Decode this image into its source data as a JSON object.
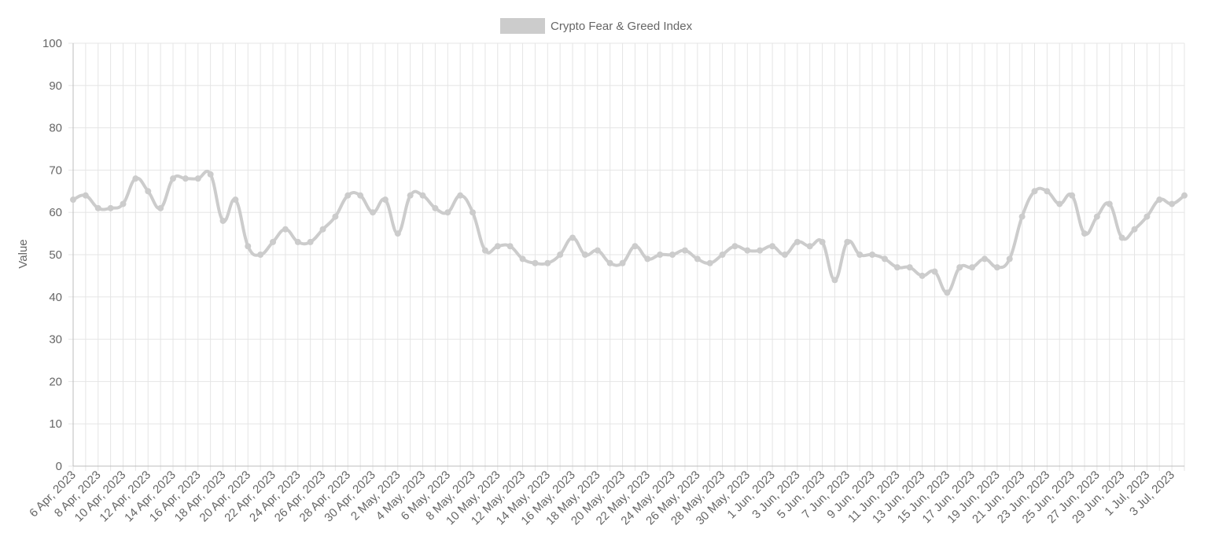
{
  "chart_data": {
    "type": "line",
    "legend": {
      "position": "top",
      "swatch_color": "#cccccc"
    },
    "ylabel": "Value",
    "ylim": [
      0,
      100
    ],
    "y_ticks": [
      0,
      10,
      20,
      30,
      40,
      50,
      60,
      70,
      80,
      90,
      100
    ],
    "grid": true,
    "line_color": "#cccccc",
    "x": [
      "6 Apr, 2023",
      "7 Apr, 2023",
      "8 Apr, 2023",
      "9 Apr, 2023",
      "10 Apr, 2023",
      "11 Apr, 2023",
      "12 Apr, 2023",
      "13 Apr, 2023",
      "14 Apr, 2023",
      "15 Apr, 2023",
      "16 Apr, 2023",
      "17 Apr, 2023",
      "18 Apr, 2023",
      "19 Apr, 2023",
      "20 Apr, 2023",
      "21 Apr, 2023",
      "22 Apr, 2023",
      "23 Apr, 2023",
      "24 Apr, 2023",
      "25 Apr, 2023",
      "26 Apr, 2023",
      "27 Apr, 2023",
      "28 Apr, 2023",
      "29 Apr, 2023",
      "30 Apr, 2023",
      "1 May, 2023",
      "2 May, 2023",
      "3 May, 2023",
      "4 May, 2023",
      "5 May, 2023",
      "6 May, 2023",
      "7 May, 2023",
      "8 May, 2023",
      "9 May, 2023",
      "10 May, 2023",
      "11 May, 2023",
      "12 May, 2023",
      "13 May, 2023",
      "14 May, 2023",
      "15 May, 2023",
      "16 May, 2023",
      "17 May, 2023",
      "18 May, 2023",
      "19 May, 2023",
      "20 May, 2023",
      "21 May, 2023",
      "22 May, 2023",
      "23 May, 2023",
      "24 May, 2023",
      "25 May, 2023",
      "26 May, 2023",
      "27 May, 2023",
      "28 May, 2023",
      "29 May, 2023",
      "30 May, 2023",
      "31 May, 2023",
      "1 Jun, 2023",
      "2 Jun, 2023",
      "3 Jun, 2023",
      "4 Jun, 2023",
      "5 Jun, 2023",
      "6 Jun, 2023",
      "7 Jun, 2023",
      "8 Jun, 2023",
      "9 Jun, 2023",
      "10 Jun, 2023",
      "11 Jun, 2023",
      "12 Jun, 2023",
      "13 Jun, 2023",
      "14 Jun, 2023",
      "15 Jun, 2023",
      "16 Jun, 2023",
      "17 Jun, 2023",
      "18 Jun, 2023",
      "19 Jun, 2023",
      "20 Jun, 2023",
      "21 Jun, 2023",
      "22 Jun, 2023",
      "23 Jun, 2023",
      "24 Jun, 2023",
      "25 Jun, 2023",
      "26 Jun, 2023",
      "27 Jun, 2023",
      "28 Jun, 2023",
      "29 Jun, 2023",
      "30 Jun, 2023",
      "1 Jul, 2023",
      "2 Jul, 2023",
      "3 Jul, 2023",
      "4 Jul, 2023"
    ],
    "x_tick_labels": [
      "6 Apr, 2023",
      "8 Apr, 2023",
      "10 Apr, 2023",
      "12 Apr, 2023",
      "14 Apr, 2023",
      "16 Apr, 2023",
      "18 Apr, 2023",
      "20 Apr, 2023",
      "22 Apr, 2023",
      "24 Apr, 2023",
      "26 Apr, 2023",
      "28 Apr, 2023",
      "30 Apr, 2023",
      "2 May, 2023",
      "4 May, 2023",
      "6 May, 2023",
      "8 May, 2023",
      "10 May, 2023",
      "12 May, 2023",
      "14 May, 2023",
      "16 May, 2023",
      "18 May, 2023",
      "20 May, 2023",
      "22 May, 2023",
      "24 May, 2023",
      "26 May, 2023",
      "28 May, 2023",
      "30 May, 2023",
      "1 Jun, 2023",
      "3 Jun, 2023",
      "5 Jun, 2023",
      "7 Jun, 2023",
      "9 Jun, 2023",
      "11 Jun, 2023",
      "13 Jun, 2023",
      "15 Jun, 2023",
      "17 Jun, 2023",
      "19 Jun, 2023",
      "21 Jun, 2023",
      "23 Jun, 2023",
      "25 Jun, 2023",
      "27 Jun, 2023",
      "29 Jun, 2023",
      "1 Jul, 2023",
      "3 Jul, 2023"
    ],
    "series": [
      {
        "name": "Crypto Fear & Greed Index",
        "values": [
          63,
          64,
          61,
          61,
          62,
          68,
          65,
          61,
          68,
          68,
          68,
          69,
          58,
          63,
          52,
          50,
          53,
          56,
          53,
          53,
          56,
          59,
          64,
          64,
          60,
          63,
          55,
          64,
          64,
          61,
          60,
          64,
          60,
          51,
          52,
          52,
          49,
          48,
          48,
          50,
          54,
          50,
          51,
          48,
          48,
          52,
          49,
          50,
          50,
          51,
          49,
          48,
          50,
          52,
          51,
          51,
          52,
          50,
          53,
          52,
          53,
          44,
          53,
          50,
          50,
          49,
          47,
          47,
          45,
          46,
          41,
          47,
          47,
          49,
          47,
          49,
          59,
          65,
          65,
          62,
          64,
          55,
          59,
          62,
          54,
          56,
          59,
          63,
          62,
          64
        ]
      }
    ]
  }
}
